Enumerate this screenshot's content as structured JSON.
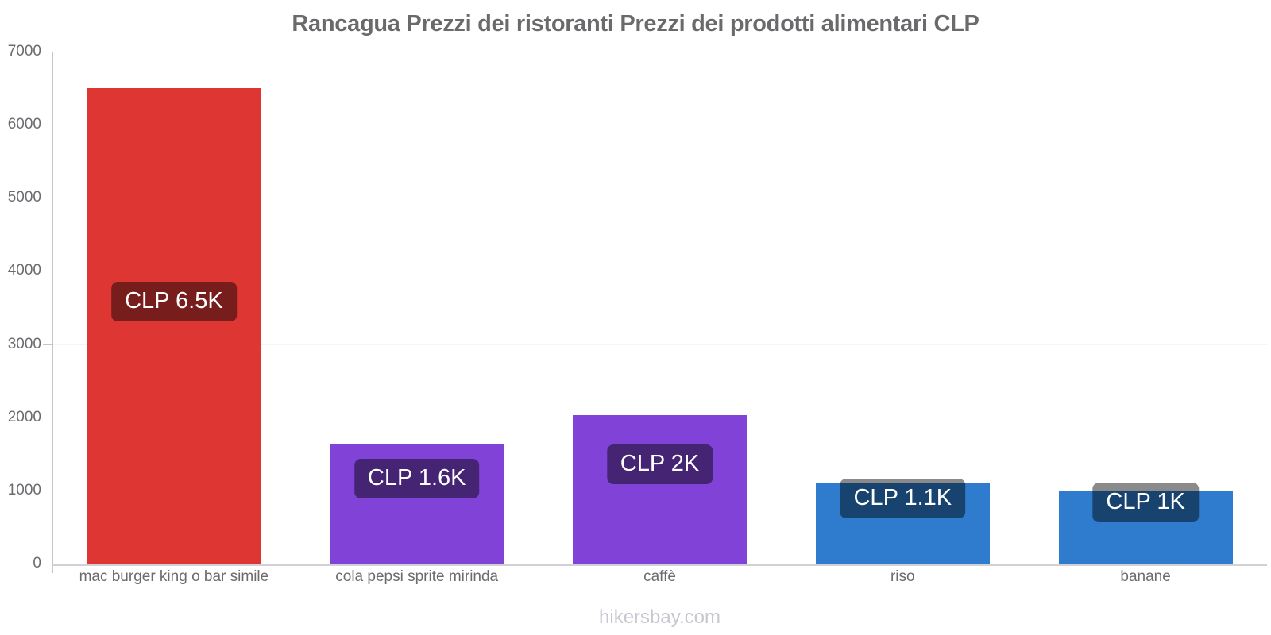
{
  "title": "Rancagua Prezzi dei ristoranti Prezzi dei prodotti alimentari CLP",
  "footer": "hikersbay.com",
  "chart_data": {
    "type": "bar",
    "title": "Rancagua Prezzi dei ristoranti Prezzi dei prodotti alimentari CLP",
    "categories": [
      "mac burger king o bar simile",
      "cola pepsi sprite mirinda",
      "caffè",
      "riso",
      "banane"
    ],
    "values": [
      6500,
      1640,
      2030,
      1100,
      1000
    ],
    "value_labels": [
      "CLP 6.5K",
      "CLP 1.6K",
      "CLP 2K",
      "CLP 1.1K",
      "CLP 1K"
    ],
    "bar_colors": [
      "#dd3633",
      "#8143d7",
      "#8143d7",
      "#2f7cce",
      "#2f7cce"
    ],
    "currency": "CLP",
    "xlabel": "",
    "ylabel": "",
    "ylim": [
      0,
      7000
    ],
    "yticks": [
      0,
      1000,
      2000,
      3000,
      4000,
      5000,
      6000,
      7000
    ],
    "grid": "faint-horizontal",
    "legend": "none",
    "badge_color": "rgba(0,0,0,0.46)"
  },
  "colors": {
    "restaurant_red": "#dd3633",
    "drink_purple": "#8143d7",
    "grocery_blue": "#2f7cce",
    "title_text": "#6a6a6d",
    "axis_text": "#6b6b70",
    "footer_text": "#c7c7d2"
  }
}
